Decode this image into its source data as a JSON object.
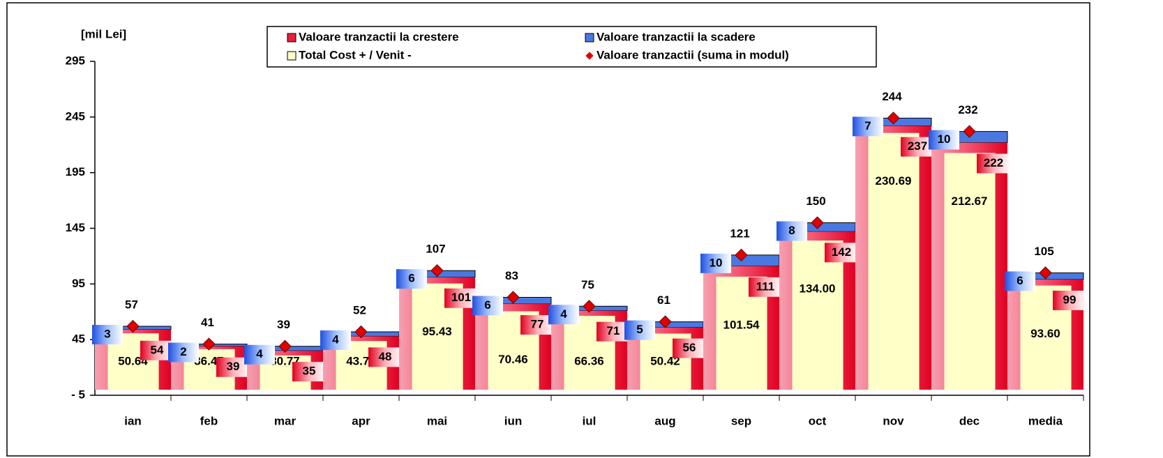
{
  "chart_data": {
    "type": "bar",
    "ylabel": "[mil Lei]",
    "categories": [
      "ian",
      "feb",
      "mar",
      "apr",
      "mai",
      "iun",
      "iul",
      "aug",
      "sep",
      "oct",
      "nov",
      "dec",
      "media"
    ],
    "series": [
      {
        "name": "Valoare tranzactii la crestere",
        "color": "#e8203a",
        "values": [
          54,
          39,
          35,
          48,
          101,
          77,
          71,
          56,
          111,
          142,
          237,
          222,
          99
        ]
      },
      {
        "name": "Valoare tranzactii la scadere",
        "color": "#4a78e0",
        "values": [
          3,
          2,
          4,
          4,
          6,
          6,
          4,
          5,
          10,
          8,
          7,
          10,
          6
        ]
      },
      {
        "name": "Total Cost + / Venit -",
        "color": "#ffffc8",
        "values": [
          50.64,
          36.47,
          30.77,
          43.72,
          95.43,
          70.46,
          66.36,
          50.42,
          101.54,
          134.0,
          230.69,
          212.67,
          93.6
        ],
        "value_labels": [
          "50.64",
          "36.47",
          "30.77",
          "43.72",
          "95.43",
          "70.46",
          "66.36",
          "50.42",
          "101.54",
          "134.00",
          "230.69",
          "212.67",
          "93.60"
        ]
      },
      {
        "name": "Valoare tranzactii (suma in modul)",
        "color": "#e00000",
        "values": [
          57,
          41,
          39,
          52,
          107,
          83,
          75,
          61,
          121,
          150,
          244,
          232,
          105
        ]
      }
    ],
    "ylim": [
      -5,
      295
    ],
    "yticks": [
      {
        "value": -5,
        "label": "- 5"
      },
      45,
      95,
      145,
      195,
      245,
      295
    ],
    "legend": "top"
  }
}
